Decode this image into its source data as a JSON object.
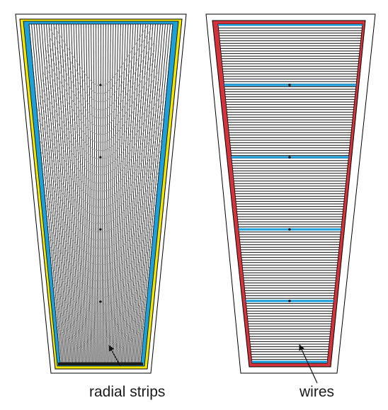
{
  "labels": {
    "left": "radial strips",
    "right": "wires"
  },
  "colors": {
    "background": "#ffffff",
    "outline": "#000000",
    "yellow_frame": "#f3e600",
    "blue_frame": "#1f9fd8",
    "red_frame": "#d4333b",
    "strip_line": "#1a1a1a",
    "field_line": "#9a9a9a",
    "wire_line": "#111111",
    "support_bar": "#1f9fd8"
  },
  "icons": {
    "left_pointer": "arrow-icon",
    "right_pointer": "arrow-icon"
  }
}
